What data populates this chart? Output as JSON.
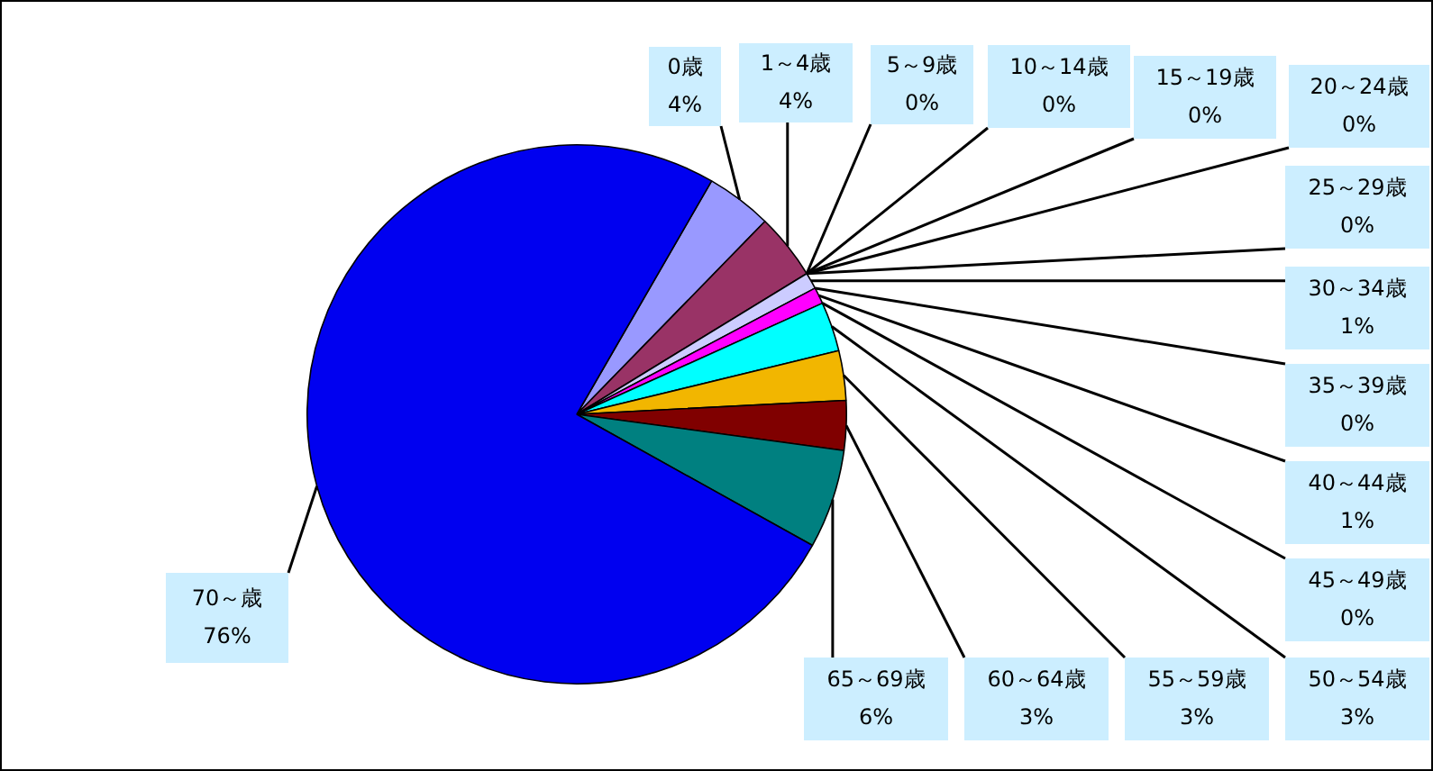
{
  "chart_data": {
    "type": "pie",
    "categories": [
      "0歳",
      "1～4歳",
      "5～9歳",
      "10～14歳",
      "15～19歳",
      "20～24歳",
      "25～29歳",
      "30～34歳",
      "35～39歳",
      "40～44歳",
      "45～49歳",
      "50～54歳",
      "55～59歳",
      "60～64歳",
      "65～69歳",
      "70～歳"
    ],
    "values": [
      4,
      4,
      0,
      0,
      0,
      0,
      0,
      1,
      0,
      1,
      0,
      3,
      3,
      3,
      6,
      76
    ],
    "value_labels": [
      "4%",
      "4%",
      "0%",
      "0%",
      "0%",
      "0%",
      "0%",
      "1%",
      "0%",
      "1%",
      "0%",
      "3%",
      "3%",
      "3%",
      "6%",
      "76%"
    ],
    "colors": [
      "#9999ff",
      "#993366",
      "#ffffcc",
      "#ccffff",
      "#660066",
      "#ff8080",
      "#0066cc",
      "#ccccff",
      "#000080",
      "#ff00ff",
      "#ffff00",
      "#00ffff",
      "#f2b600",
      "#800000",
      "#008080",
      "#0000f0"
    ]
  }
}
